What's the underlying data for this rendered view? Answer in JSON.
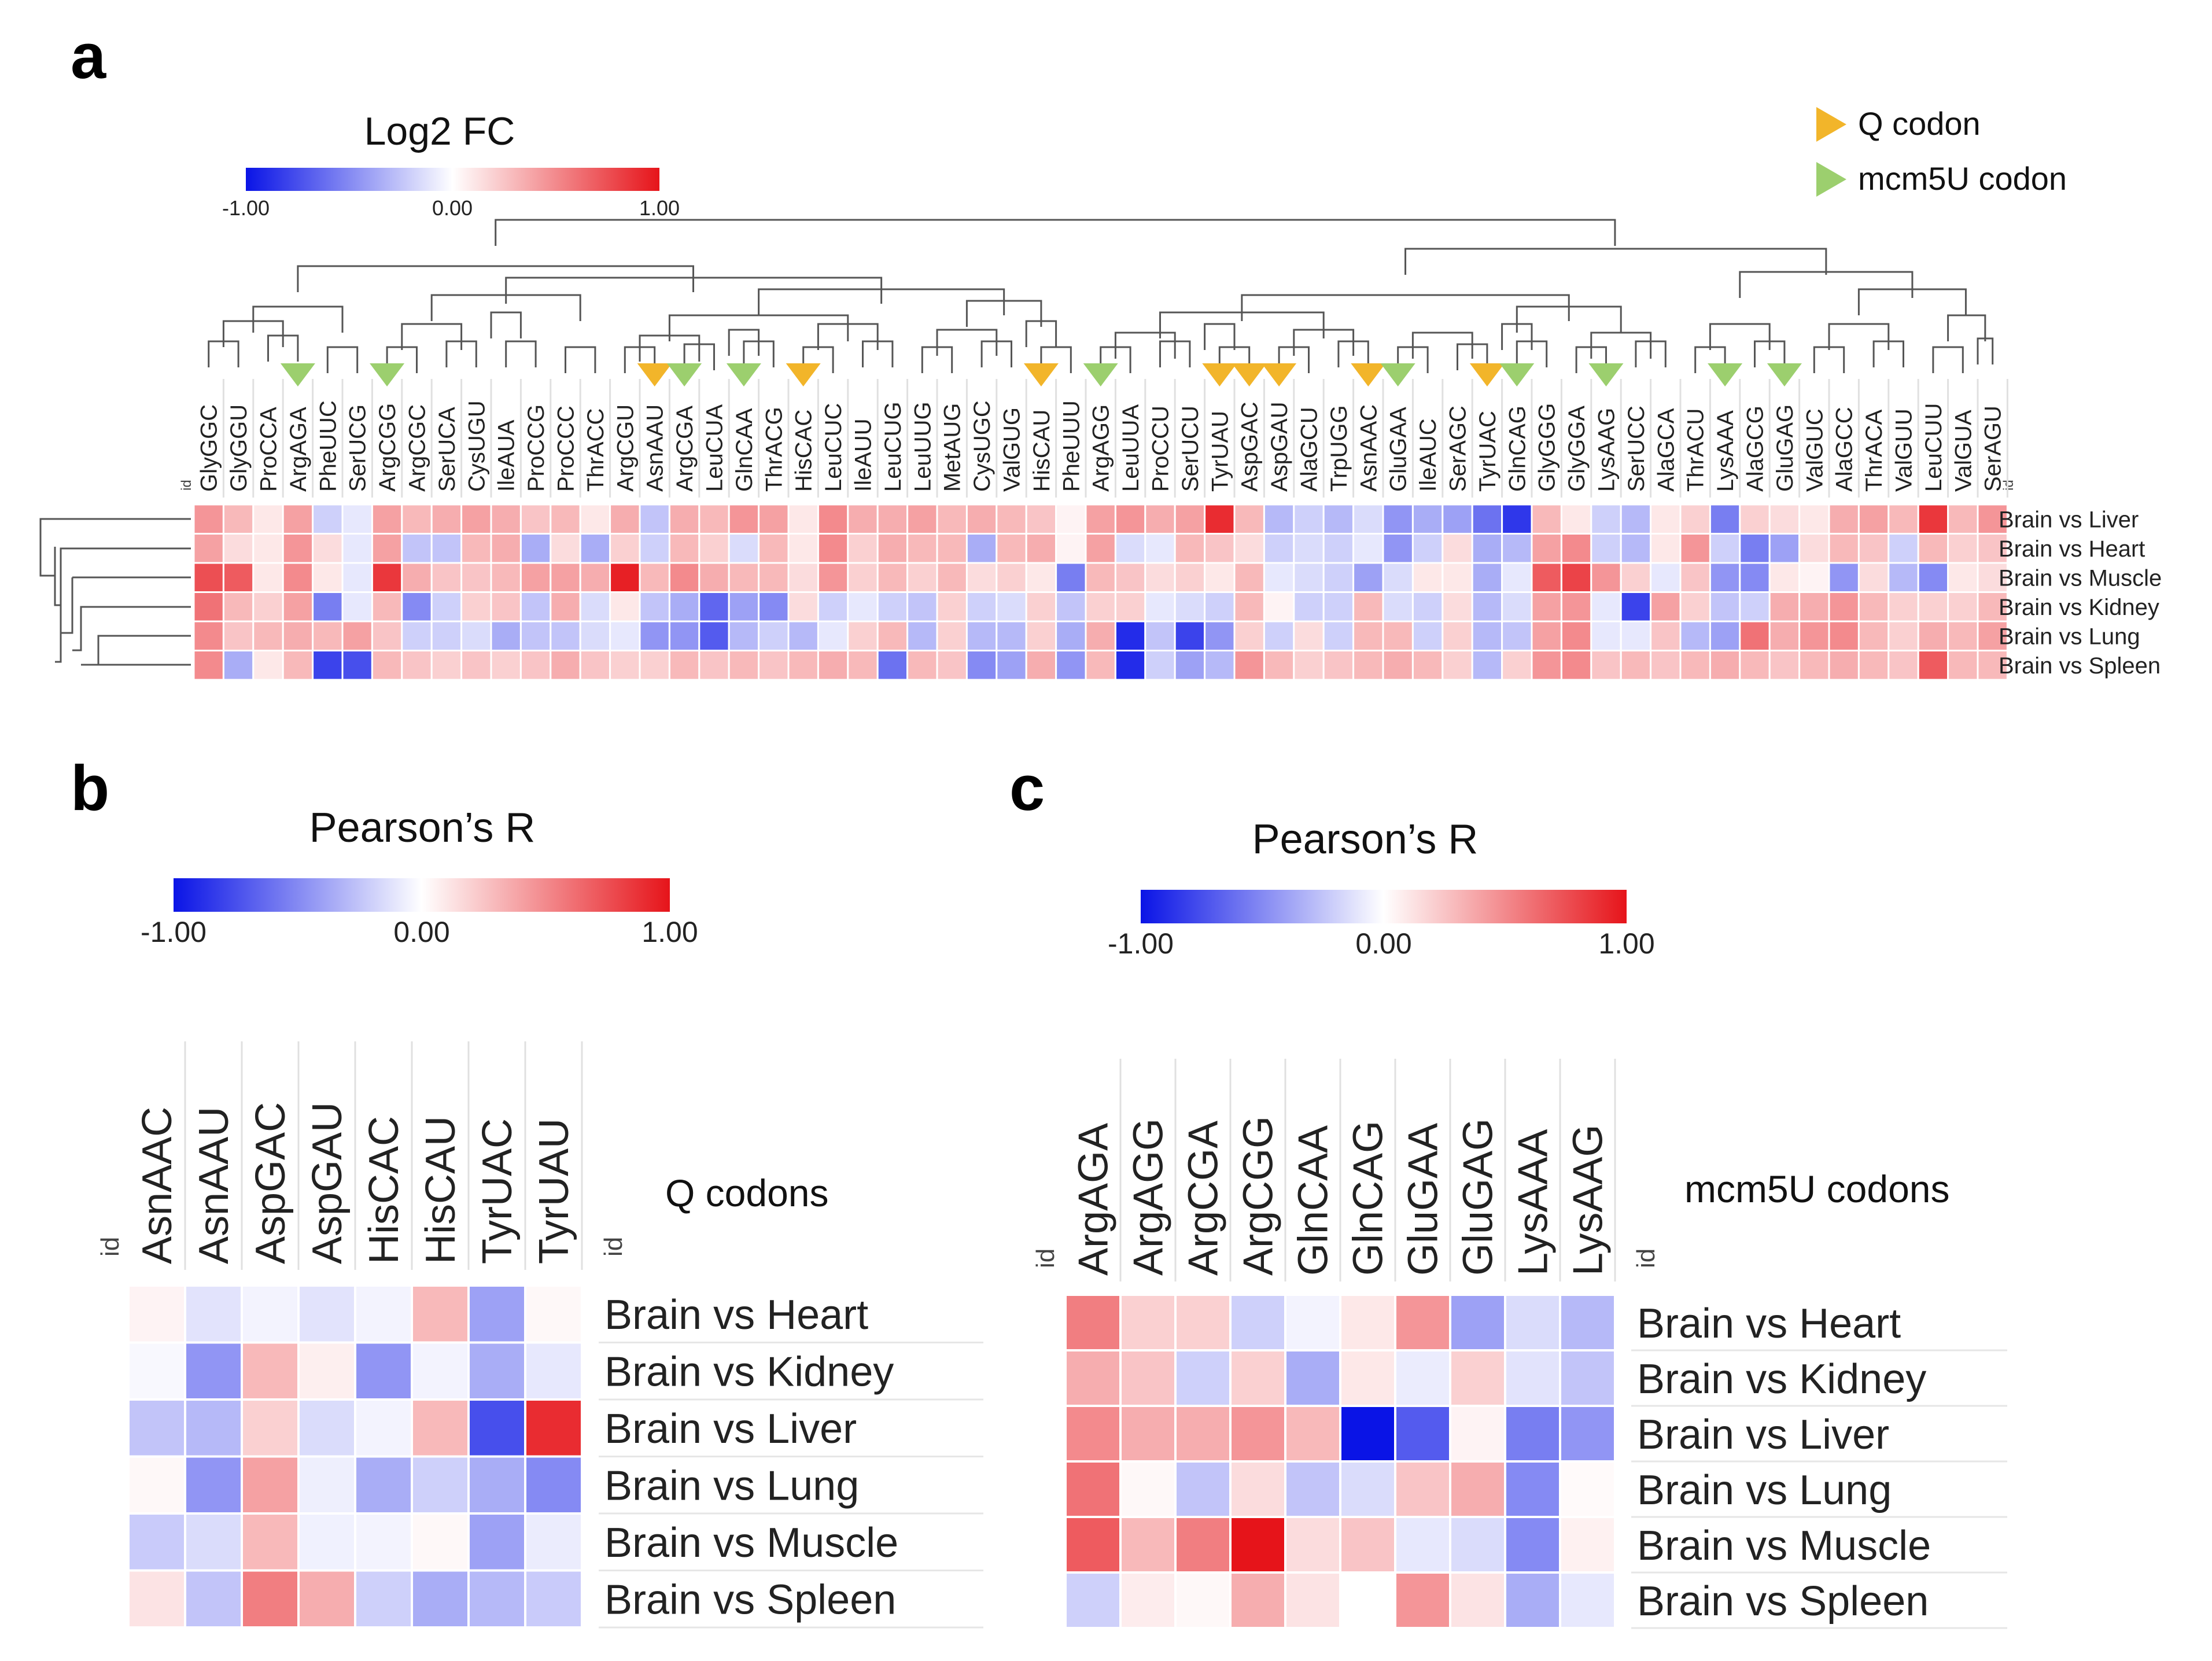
{
  "chart_data": [
    {
      "type": "heatmap",
      "panel_label": "a",
      "colorbar": {
        "title": "Log2 FC",
        "min_label": "-1.00",
        "mid_label": "0.00",
        "max_label": "1.00",
        "range": [
          -1,
          1
        ]
      },
      "legend": [
        {
          "label": "Q codon",
          "marker": "triangle",
          "color": "#f2b52a"
        },
        {
          "label": "mcm5U codon",
          "marker": "triangle",
          "color": "#9ccf6e"
        }
      ],
      "id_label": "id",
      "columns": [
        "GlyGGC",
        "GlyGGU",
        "ProCCA",
        "ArgAGA",
        "PheUUC",
        "SerUCG",
        "ArgCGG",
        "ArgCGC",
        "SerUCA",
        "CysUGU",
        "IleAUA",
        "ProCCG",
        "ProCCC",
        "ThrACC",
        "ArgCGU",
        "AsnAAU",
        "ArgCGA",
        "LeuCUA",
        "GlnCAA",
        "ThrACG",
        "HisCAC",
        "LeuCUC",
        "IleAUU",
        "LeuCUG",
        "LeuUUG",
        "MetAUG",
        "CysUGC",
        "ValGUG",
        "HisCAU",
        "PheUUU",
        "ArgAGG",
        "LeuUUA",
        "ProCCU",
        "SerUCU",
        "TyrUAU",
        "AspGAC",
        "AspGAU",
        "AlaGCU",
        "TrpUGG",
        "AsnAAC",
        "GluGAA",
        "IleAUC",
        "SerAGC",
        "TyrUAC",
        "GlnCAG",
        "GlyGGG",
        "GlyGGA",
        "LysAAG",
        "SerUCC",
        "AlaGCA",
        "ThrACU",
        "LysAAA",
        "AlaGCG",
        "GluGAG",
        "ValGUC",
        "AlaGCC",
        "ThrACA",
        "ValGUU",
        "LeuCUU",
        "ValGUA",
        "SerAGU"
      ],
      "q_codon_markers": [
        "AsnAAU",
        "HisCAC",
        "HisCAU",
        "TyrUAU",
        "AspGAC",
        "AspGAU",
        "AsnAAC",
        "TyrUAC"
      ],
      "mcm5u_codon_markers": [
        "ArgAGA",
        "ArgCGG",
        "ArgCGA",
        "GlnCAA",
        "ArgAGG",
        "GluGAA",
        "GlnCAG",
        "LysAAG",
        "LysAAA",
        "GluGAG"
      ],
      "rows": [
        "Brain vs Liver",
        "Brain vs Heart",
        "Brain vs Muscle",
        "Brain vs Kidney",
        "Brain vs Lung",
        "Brain vs Spleen"
      ],
      "values": [
        [
          0.45,
          0.3,
          0.1,
          0.4,
          -0.2,
          -0.1,
          0.4,
          0.3,
          0.35,
          0.4,
          0.35,
          0.25,
          0.3,
          0.1,
          0.35,
          -0.25,
          0.35,
          0.3,
          0.45,
          0.4,
          0.1,
          0.5,
          0.35,
          0.35,
          0.4,
          0.3,
          0.35,
          0.3,
          0.25,
          0.05,
          0.4,
          0.45,
          0.35,
          0.4,
          0.9,
          0.3,
          -0.3,
          -0.2,
          -0.3,
          -0.15,
          -0.45,
          -0.35,
          -0.4,
          -0.6,
          -0.85,
          0.3,
          0.1,
          -0.2,
          -0.3,
          0.1,
          0.2,
          -0.55,
          0.2,
          0.15,
          0.1,
          0.35,
          0.4,
          0.3,
          0.85,
          0.3,
          0.45
        ],
        [
          0.4,
          0.15,
          0.1,
          0.45,
          0.15,
          -0.1,
          0.4,
          -0.25,
          -0.25,
          0.3,
          0.35,
          -0.35,
          0.15,
          -0.35,
          0.2,
          -0.2,
          0.3,
          0.2,
          -0.15,
          0.3,
          0.1,
          0.5,
          0.2,
          0.35,
          0.3,
          0.3,
          -0.35,
          0.3,
          0.35,
          0.05,
          0.4,
          -0.15,
          -0.1,
          0.3,
          0.25,
          0.15,
          -0.2,
          -0.15,
          -0.2,
          -0.1,
          -0.45,
          -0.2,
          0.15,
          -0.35,
          -0.3,
          0.4,
          0.5,
          -0.2,
          -0.3,
          0.1,
          0.45,
          -0.2,
          -0.55,
          -0.4,
          0.15,
          0.3,
          0.25,
          -0.2,
          0.3,
          0.2,
          0.25
        ],
        [
          0.75,
          0.7,
          0.1,
          0.5,
          0.1,
          -0.1,
          0.85,
          0.35,
          0.25,
          0.25,
          0.3,
          0.4,
          0.4,
          0.35,
          0.95,
          0.3,
          0.5,
          0.35,
          0.3,
          0.3,
          0.15,
          0.45,
          0.2,
          0.3,
          0.2,
          0.3,
          0.15,
          0.2,
          0.1,
          -0.55,
          0.3,
          0.25,
          0.15,
          0.2,
          0.1,
          0.3,
          -0.1,
          -0.15,
          -0.2,
          -0.4,
          -0.15,
          0.1,
          0.1,
          -0.35,
          -0.1,
          0.7,
          0.8,
          0.45,
          0.2,
          -0.1,
          0.25,
          -0.45,
          -0.5,
          0.1,
          0.05,
          -0.45,
          0.15,
          -0.3,
          -0.5,
          0.1,
          0.15
        ],
        [
          0.6,
          0.3,
          0.2,
          0.4,
          -0.55,
          -0.1,
          0.3,
          -0.5,
          -0.2,
          0.2,
          0.25,
          -0.25,
          0.35,
          -0.15,
          0.1,
          -0.25,
          -0.35,
          -0.65,
          -0.4,
          -0.5,
          0.15,
          -0.2,
          -0.1,
          -0.2,
          -0.25,
          0.2,
          -0.2,
          -0.15,
          0.2,
          -0.25,
          0.2,
          0.2,
          -0.1,
          -0.15,
          -0.2,
          0.3,
          0.05,
          -0.2,
          -0.2,
          0.3,
          -0.15,
          -0.2,
          0.15,
          -0.3,
          -0.15,
          0.4,
          0.45,
          -0.1,
          -0.8,
          0.4,
          0.2,
          -0.25,
          -0.2,
          0.35,
          0.35,
          0.45,
          0.3,
          0.2,
          0.2,
          0.2,
          0.3
        ],
        [
          0.5,
          0.25,
          0.3,
          0.35,
          0.3,
          0.4,
          0.25,
          -0.2,
          -0.2,
          -0.15,
          -0.35,
          -0.25,
          -0.25,
          -0.15,
          -0.1,
          -0.45,
          -0.45,
          -0.7,
          -0.3,
          -0.2,
          -0.3,
          -0.1,
          0.2,
          0.3,
          -0.3,
          0.2,
          -0.3,
          -0.3,
          0.2,
          -0.35,
          0.35,
          -0.9,
          -0.25,
          -0.8,
          -0.45,
          0.2,
          -0.2,
          0.15,
          -0.2,
          0.3,
          0.3,
          -0.2,
          0.2,
          -0.3,
          -0.25,
          0.4,
          0.5,
          -0.1,
          -0.1,
          0.25,
          -0.3,
          -0.4,
          0.6,
          0.35,
          0.45,
          0.5,
          0.3,
          0.2,
          0.35,
          0.3,
          0.4
        ],
        [
          0.5,
          -0.35,
          0.1,
          0.3,
          -0.8,
          -0.75,
          0.3,
          0.25,
          0.2,
          0.25,
          0.2,
          0.25,
          0.35,
          0.25,
          0.2,
          0.2,
          0.3,
          0.25,
          0.3,
          0.25,
          0.3,
          0.35,
          0.3,
          -0.6,
          0.3,
          0.25,
          -0.5,
          -0.4,
          0.35,
          -0.45,
          0.3,
          -0.9,
          -0.2,
          -0.4,
          -0.3,
          0.45,
          0.3,
          0.2,
          0.25,
          0.3,
          0.35,
          0.3,
          0.2,
          -0.3,
          0.2,
          0.45,
          0.5,
          0.25,
          0.3,
          0.25,
          0.3,
          0.35,
          0.3,
          0.25,
          0.3,
          0.35,
          0.3,
          0.25,
          0.7,
          0.3,
          0.3
        ]
      ]
    },
    {
      "type": "heatmap",
      "panel_label": "b",
      "colorbar": {
        "title": "Pearson’s R",
        "min_label": "-1.00",
        "mid_label": "0.00",
        "max_label": "1.00",
        "range": [
          -1,
          1
        ]
      },
      "side_title": "Q codons",
      "id_label": "id",
      "columns": [
        "AsnAAC",
        "AsnAAU",
        "AspGAC",
        "AspGAU",
        "HisCAC",
        "HisCAU",
        "TyrUAC",
        "TyrUAU"
      ],
      "rows": [
        "Brain vs Heart",
        "Brain vs Kidney",
        "Brain vs Liver",
        "Brain vs Lung",
        "Brain vs Muscle",
        "Brain vs Spleen"
      ],
      "values": [
        [
          0.05,
          -0.12,
          -0.05,
          -0.12,
          -0.05,
          0.3,
          -0.4,
          0.03
        ],
        [
          -0.03,
          -0.45,
          0.3,
          0.07,
          -0.45,
          -0.05,
          -0.35,
          -0.1
        ],
        [
          -0.25,
          -0.3,
          0.2,
          -0.15,
          -0.05,
          0.3,
          -0.75,
          0.9
        ],
        [
          0.03,
          -0.45,
          0.4,
          -0.07,
          -0.35,
          -0.2,
          -0.35,
          -0.5
        ],
        [
          -0.22,
          -0.15,
          0.3,
          -0.06,
          -0.05,
          0.03,
          -0.4,
          -0.08
        ],
        [
          0.12,
          -0.25,
          0.55,
          0.35,
          -0.2,
          -0.35,
          -0.3,
          -0.22
        ]
      ]
    },
    {
      "type": "heatmap",
      "panel_label": "c",
      "colorbar": {
        "title": "Pearson’s R",
        "min_label": "-1.00",
        "mid_label": "0.00",
        "max_label": "1.00",
        "range": [
          -1,
          1
        ]
      },
      "side_title": "mcm5U codons",
      "id_label": "id",
      "columns": [
        "ArgAGA",
        "ArgAGG",
        "ArgCGA",
        "ArgCGG",
        "GlnCAA",
        "GlnCAG",
        "GluGAA",
        "GluGAG",
        "LysAAA",
        "LysAAG"
      ],
      "rows": [
        "Brain vs Heart",
        "Brain vs Kidney",
        "Brain vs Liver",
        "Brain vs Lung",
        "Brain vs Muscle",
        "Brain vs Spleen"
      ],
      "values": [
        [
          0.55,
          0.2,
          0.2,
          -0.2,
          -0.05,
          0.1,
          0.45,
          -0.4,
          -0.15,
          -0.3
        ],
        [
          0.35,
          0.25,
          -0.2,
          0.2,
          -0.35,
          0.1,
          -0.08,
          0.2,
          -0.12,
          -0.25
        ],
        [
          0.5,
          0.35,
          0.35,
          0.45,
          0.3,
          -1.0,
          -0.7,
          0.05,
          -0.55,
          -0.45
        ],
        [
          0.6,
          0.03,
          -0.25,
          0.15,
          -0.25,
          -0.15,
          0.25,
          0.35,
          -0.5,
          0.02
        ],
        [
          0.7,
          0.3,
          0.55,
          1.0,
          0.15,
          0.25,
          -0.1,
          -0.15,
          -0.5,
          0.06
        ],
        [
          -0.2,
          0.08,
          0.03,
          0.35,
          0.12,
          0.0,
          0.45,
          0.12,
          -0.35,
          -0.1
        ]
      ]
    }
  ]
}
